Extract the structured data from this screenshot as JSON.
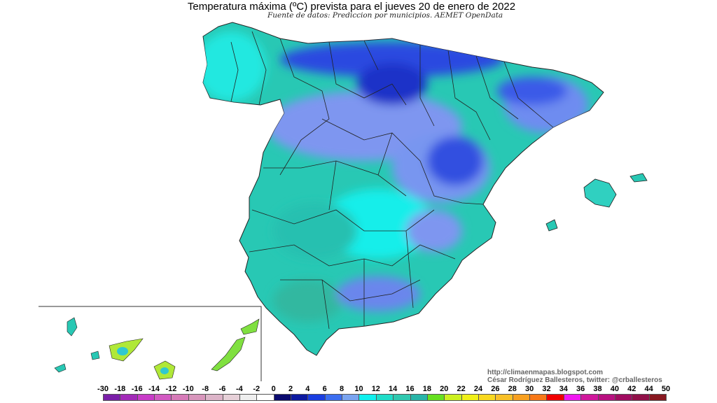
{
  "title": "Temperatura máxima (ºC) prevista para el jueves 20 de enero de 2022",
  "subtitle": "Fuente de datos: Prediccion por municipios. AEMET OpenData",
  "credits": {
    "url": "http://climaenmapas.blogspot.com",
    "author": "César Rodríguez Ballesteros, twitter: @crballesteros"
  },
  "legend": {
    "labels": [
      "-30",
      "-18",
      "-16",
      "-14",
      "-12",
      "-10",
      "-8",
      "-6",
      "-4",
      "-2",
      "0",
      "2",
      "4",
      "6",
      "8",
      "10",
      "12",
      "14",
      "16",
      "18",
      "20",
      "22",
      "24",
      "26",
      "28",
      "30",
      "32",
      "34",
      "36",
      "38",
      "40",
      "42",
      "44",
      "50"
    ],
    "colors": [
      "#7a1fa8",
      "#a22ab8",
      "#c83cc8",
      "#d25ac2",
      "#d67ab8",
      "#d896bc",
      "#dcb4c8",
      "#e6d0d8",
      "#eeeeee",
      "#ffffff",
      "#0a0a6e",
      "#0c1aa0",
      "#1a3ee0",
      "#3c6ef0",
      "#7aa4f0",
      "#10f0ee",
      "#20dcc8",
      "#30c8b0",
      "#28b4a8",
      "#66e020",
      "#ccf020",
      "#f0f018",
      "#f8d820",
      "#f8c028",
      "#f8a020",
      "#f87818",
      "#f00000",
      "#f018f0",
      "#d0189c",
      "#b81080",
      "#a00c60",
      "#901048",
      "#881820"
    ]
  },
  "map": {
    "region": "Península Ibérica, Baleares, Canarias",
    "palette": {
      "land_base": "#30d8c0",
      "warm": "#28bca8",
      "cold": "#8098f0",
      "colder": "#3c5ef0",
      "coldest": "#1a2ed0",
      "border": "#222222"
    }
  }
}
